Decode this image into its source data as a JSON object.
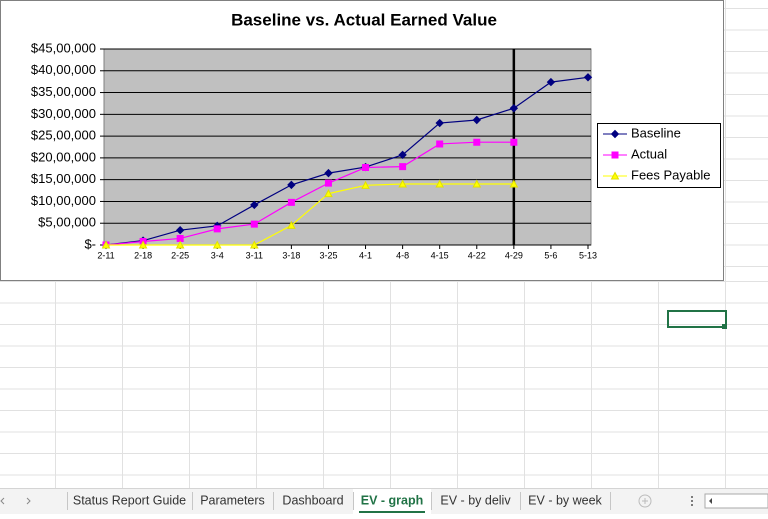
{
  "chart_data": {
    "type": "line",
    "title": "Baseline vs. Actual Earned Value",
    "categories": [
      "2-11",
      "2-18",
      "2-25",
      "3-4",
      "3-11",
      "3-18",
      "3-25",
      "4-1",
      "4-8",
      "4-15",
      "4-22",
      "4-29",
      "5-6",
      "5-13"
    ],
    "series": [
      {
        "name": "Baseline",
        "color": "#000080",
        "marker": "diamond",
        "values": [
          0,
          100000,
          340000,
          440000,
          920000,
          1380000,
          1650000,
          1790000,
          2070000,
          2800000,
          2870000,
          3140000,
          3740000,
          3850000
        ]
      },
      {
        "name": "Actual",
        "color": "#ff00ff",
        "marker": "square",
        "values": [
          0,
          80000,
          150000,
          370000,
          480000,
          980000,
          1420000,
          1780000,
          1800000,
          2320000,
          2360000,
          2360000,
          null,
          null
        ]
      },
      {
        "name": "Fees Payable",
        "color": "#ffff00",
        "marker": "triangle",
        "values": [
          0,
          0,
          0,
          0,
          0,
          450000,
          1180000,
          1370000,
          1400000,
          1400000,
          1400000,
          1400000,
          null,
          null
        ]
      }
    ],
    "ylim": [
      0,
      4500000
    ],
    "yticks": [
      {
        "value": 0,
        "label": "$-"
      },
      {
        "value": 500000,
        "label": "$5,00,000"
      },
      {
        "value": 1000000,
        "label": "$10,00,000"
      },
      {
        "value": 1500000,
        "label": "$15,00,000"
      },
      {
        "value": 2000000,
        "label": "$20,00,000"
      },
      {
        "value": 2500000,
        "label": "$25,00,000"
      },
      {
        "value": 3000000,
        "label": "$30,00,000"
      },
      {
        "value": 3500000,
        "label": "$35,00,000"
      },
      {
        "value": 4000000,
        "label": "$40,00,000"
      },
      {
        "value": 4500000,
        "label": "$45,00,000"
      }
    ],
    "grid": true,
    "plot_background": "#c0c0c0",
    "legend": "right"
  },
  "sheet_tabs": [
    "Status Report Guide",
    "Parameters",
    "Dashboard",
    "EV - graph",
    "EV - by deliv",
    "EV - by week"
  ],
  "active_tab": 3
}
